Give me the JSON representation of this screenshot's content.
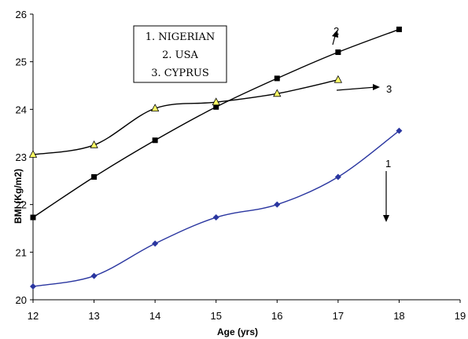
{
  "chart_data": {
    "type": "line",
    "xlabel": "Age (yrs)",
    "ylabel": "BMI (Kg/m2)",
    "xlim": [
      12,
      19
    ],
    "ylim": [
      20,
      26
    ],
    "x_ticks": [
      "12",
      "13",
      "14",
      "15",
      "16",
      "17",
      "18",
      "19"
    ],
    "y_ticks": [
      "20",
      "21",
      "22",
      "23",
      "24",
      "25",
      "26"
    ],
    "grid": false,
    "legend": {
      "placement": "top-center",
      "entries": [
        "1. NIGERIAN",
        "2. USA",
        "3. CYPRUS"
      ]
    },
    "series": [
      {
        "tag": "1",
        "color": "#2a36a0",
        "marker": "diamond",
        "x": [
          12,
          13,
          14,
          15,
          16,
          17,
          18
        ],
        "y": [
          20.28,
          20.5,
          21.18,
          21.73,
          22.0,
          22.58,
          23.55
        ]
      },
      {
        "tag": "2",
        "color": "#000000",
        "marker": "square",
        "x": [
          12,
          13,
          14,
          15,
          16,
          17,
          18
        ],
        "y": [
          21.73,
          22.58,
          23.35,
          24.05,
          24.65,
          25.2,
          25.68
        ]
      },
      {
        "tag": "3",
        "color": "#000000",
        "marker": "triangle",
        "marker_fill": "#ffff66",
        "x": [
          12,
          13,
          14,
          15,
          16,
          17
        ],
        "y": [
          23.05,
          23.25,
          24.02,
          24.15,
          24.33,
          24.62
        ]
      }
    ]
  }
}
